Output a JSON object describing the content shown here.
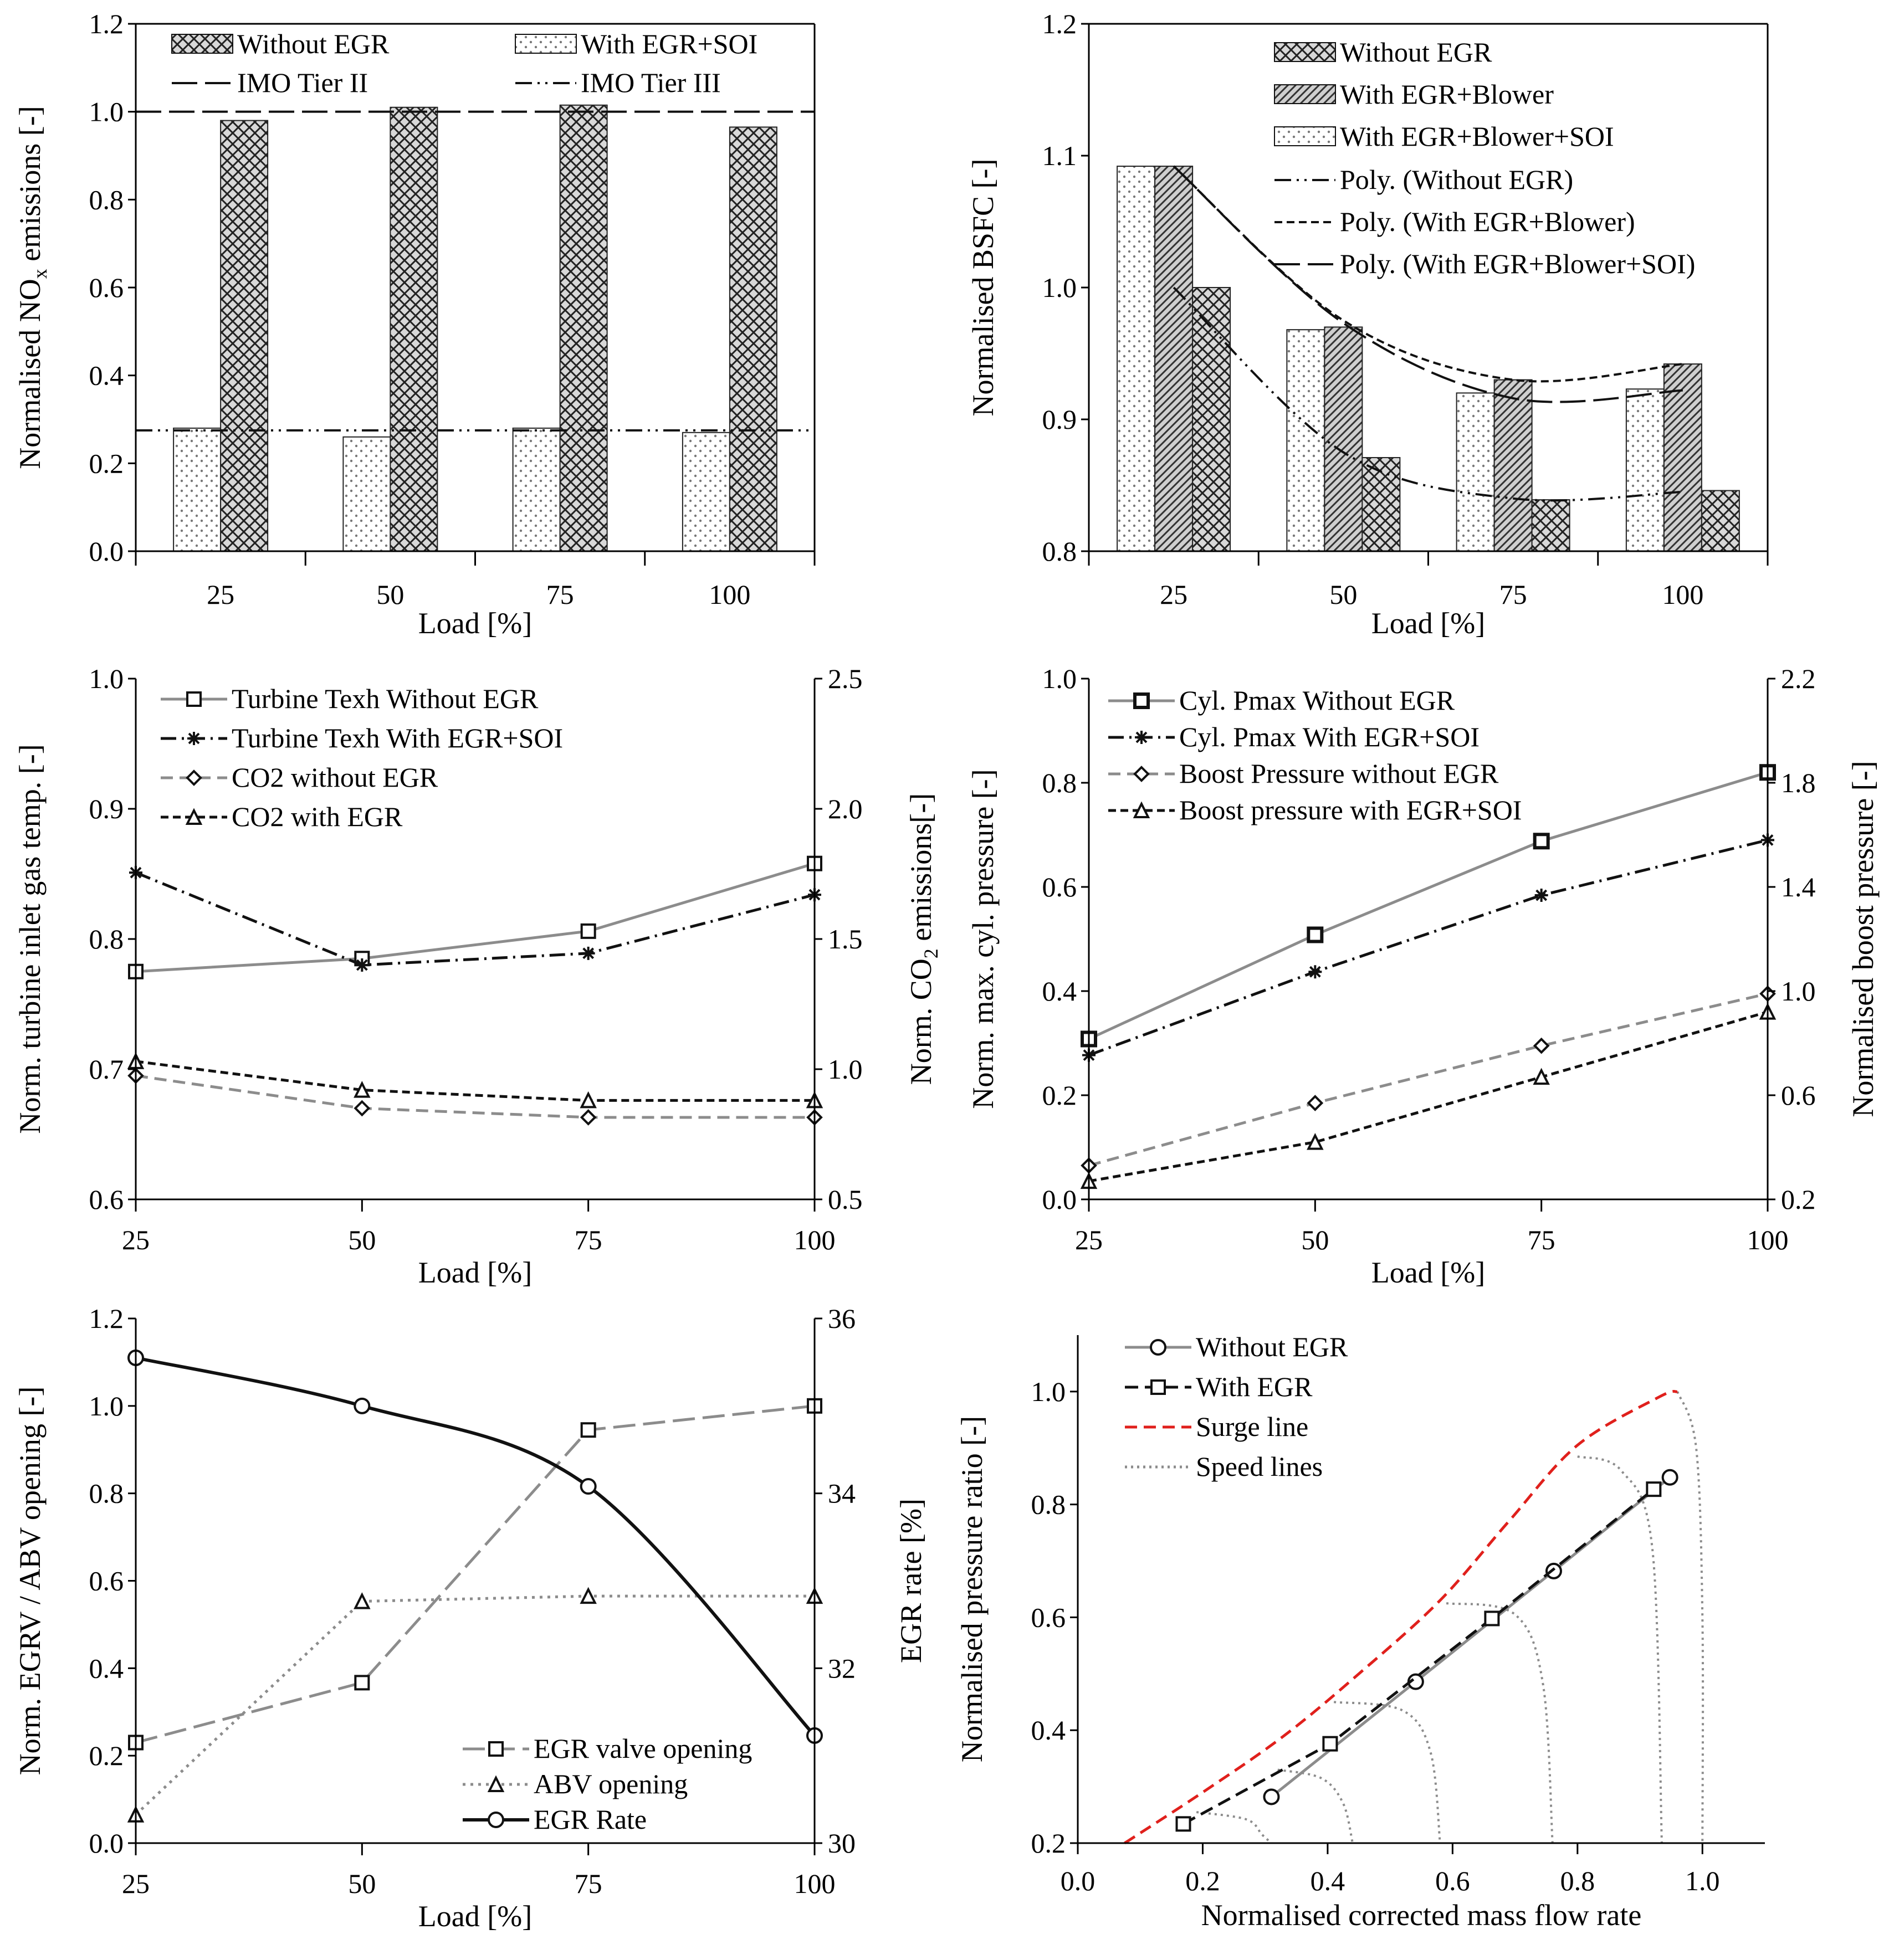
{
  "chart_data": [
    {
      "id": "p1",
      "type": "bar",
      "categories": [
        "25",
        "50",
        "75",
        "100"
      ],
      "xlabel": "Load [%]",
      "ylabel_pre": "Normalised NO",
      "ylabel_sub": "x",
      "ylabel_post": " emissions [-]",
      "ylim": [
        0,
        1.2
      ],
      "yticks": [
        "0.0",
        "0.2",
        "0.4",
        "0.6",
        "0.8",
        "1.0",
        "1.2"
      ],
      "series": [
        {
          "name": "With EGR+SOI",
          "pattern": "dots",
          "values": [
            0.28,
            0.26,
            0.28,
            0.27
          ]
        },
        {
          "name": "Without EGR",
          "pattern": "cross",
          "values": [
            0.98,
            1.01,
            1.015,
            0.965
          ]
        }
      ],
      "reference_lines": [
        {
          "name": "IMO Tier II",
          "value": 1.0,
          "dash": "long"
        },
        {
          "name": "IMO Tier III",
          "value": 0.275,
          "dash": "dashdotdot"
        }
      ]
    },
    {
      "id": "p2",
      "type": "bar",
      "categories": [
        "25",
        "50",
        "75",
        "100"
      ],
      "xlabel": "Load [%]",
      "ylabel": "Normalised BSFC [-]",
      "ylim": [
        0.8,
        1.2
      ],
      "yticks": [
        "0.8",
        "0.9",
        "1.0",
        "1.1",
        "1.2"
      ],
      "series": [
        {
          "name": "With EGR+Blower+SOI",
          "pattern": "dots",
          "values": [
            1.092,
            0.968,
            0.92,
            0.923
          ]
        },
        {
          "name": "With EGR+Blower",
          "pattern": "diag",
          "values": [
            1.092,
            0.97,
            0.93,
            0.942
          ]
        },
        {
          "name": "Without EGR",
          "pattern": "cross",
          "values": [
            1.0,
            0.871,
            0.839,
            0.846
          ]
        }
      ],
      "legend_order": [
        "Without EGR",
        "With EGR+Blower",
        "With EGR+Blower+SOI"
      ],
      "trendlines": [
        {
          "name": "Poly. (Without EGR)",
          "dash": "dashdotdot",
          "points": [
            [
              25,
              1.0
            ],
            [
              50,
              0.875
            ],
            [
              75,
              0.84
            ],
            [
              100,
              0.845
            ]
          ]
        },
        {
          "name": "Poly. (With EGR+Blower)",
          "dash": "short",
          "points": [
            [
              25,
              1.092
            ],
            [
              50,
              0.975
            ],
            [
              75,
              0.93
            ],
            [
              100,
              0.942
            ]
          ]
        },
        {
          "name": "Poly. (With EGR+Blower+SOI)",
          "dash": "long",
          "points": [
            [
              25,
              1.092
            ],
            [
              50,
              0.973
            ],
            [
              75,
              0.916
            ],
            [
              100,
              0.922
            ]
          ]
        }
      ]
    },
    {
      "id": "p3",
      "type": "line",
      "x": [
        25,
        50,
        75,
        100
      ],
      "xlabel": "Load [%]",
      "ylabel": "Norm. turbine inlet gas temp. [-]",
      "y2label_pre": "Norm. CO",
      "y2label_sub": "2",
      "y2label_post": " emissions[-]",
      "xticks": [
        "25",
        "50",
        "75",
        "100"
      ],
      "ylim": [
        0.6,
        1.0
      ],
      "yticks": [
        "0.6",
        "0.7",
        "0.8",
        "0.9",
        "1.0"
      ],
      "y2lim": [
        0.5,
        2.5
      ],
      "y2ticks": [
        "0.5",
        "1.0",
        "1.5",
        "2.0",
        "2.5"
      ],
      "series": [
        {
          "name": "Turbine Texh Without EGR",
          "axis": "left",
          "marker": "square",
          "style": "gray-solid",
          "values": [
            0.775,
            0.785,
            0.806,
            0.858
          ]
        },
        {
          "name": "Turbine Texh With EGR+SOI",
          "axis": "left",
          "marker": "star",
          "style": "black-dashdot",
          "values": [
            0.851,
            0.78,
            0.789,
            0.834
          ]
        },
        {
          "name": "CO2 without EGR",
          "axis": "right",
          "marker": "diamond",
          "style": "gray-dash",
          "values": [
            0.975,
            0.85,
            0.815,
            0.815
          ]
        },
        {
          "name": "CO2 with EGR",
          "axis": "right",
          "marker": "triangle",
          "style": "black-dotdash",
          "values": [
            1.03,
            0.92,
            0.88,
            0.88
          ]
        }
      ]
    },
    {
      "id": "p4",
      "type": "line",
      "x": [
        25,
        50,
        75,
        100
      ],
      "xlabel": "Load [%]",
      "ylabel": "Norm. max. cyl. pressure  [-]",
      "y2label": "Normalised boost pressure [-]",
      "xticks": [
        "25",
        "50",
        "75",
        "100"
      ],
      "ylim": [
        0.0,
        1.0
      ],
      "yticks": [
        "0.0",
        "0.2",
        "0.4",
        "0.6",
        "0.8",
        "1.0"
      ],
      "y2lim": [
        0.2,
        2.2
      ],
      "y2ticks": [
        "0.2",
        "0.6",
        "1.0",
        "1.4",
        "1.8",
        "2.2"
      ],
      "series": [
        {
          "name": "Cyl. Pmax Without EGR",
          "axis": "left",
          "marker": "square-bold",
          "style": "gray-solid",
          "values": [
            0.308,
            0.508,
            0.688,
            0.82
          ]
        },
        {
          "name": "Cyl. Pmax With EGR+SOI",
          "axis": "left",
          "marker": "star",
          "style": "black-dashdot",
          "values": [
            0.277,
            0.437,
            0.584,
            0.69
          ]
        },
        {
          "name": "Boost Pressure without EGR",
          "axis": "right",
          "marker": "diamond",
          "style": "gray-dash",
          "values": [
            0.33,
            0.57,
            0.79,
            0.99
          ]
        },
        {
          "name": "Boost pressure with EGR+SOI",
          "axis": "right",
          "marker": "triangle",
          "style": "black-dotdash",
          "values": [
            0.27,
            0.42,
            0.67,
            0.92
          ]
        }
      ]
    },
    {
      "id": "p5",
      "type": "line",
      "x": [
        25,
        50,
        75,
        100
      ],
      "xlabel": "Load [%]",
      "ylabel": "Norm. EGRV / ABV opening [-]",
      "y2label": "EGR rate [%]",
      "xticks": [
        "25",
        "50",
        "75",
        "100"
      ],
      "ylim": [
        0.0,
        1.2
      ],
      "yticks": [
        "0.0",
        "0.2",
        "0.4",
        "0.6",
        "0.8",
        "1.0",
        "1.2"
      ],
      "y2lim": [
        30,
        36
      ],
      "y2ticks": [
        "30",
        "32",
        "34",
        "36"
      ],
      "series": [
        {
          "name": "EGR valve opening",
          "axis": "left",
          "marker": "square",
          "style": "gray-longdash",
          "values": [
            0.23,
            0.367,
            0.945,
            1.0
          ]
        },
        {
          "name": "ABV opening",
          "axis": "left",
          "marker": "triangle",
          "style": "gray-dotted",
          "values": [
            0.065,
            0.553,
            0.565,
            0.565
          ]
        },
        {
          "name": "EGR Rate",
          "axis": "right",
          "marker": "circle",
          "style": "black-solid",
          "values": [
            35.55,
            35.0,
            34.08,
            31.23
          ]
        }
      ]
    },
    {
      "id": "p6",
      "type": "line",
      "xlabel": "Normalised corrected mass flow rate",
      "ylabel": "Normalised pressure ratio [-]",
      "xlim": [
        0.0,
        1.1
      ],
      "xticks": [
        "0.0",
        "0.2",
        "0.4",
        "0.6",
        "0.8",
        "1.0"
      ],
      "ylim": [
        0.2,
        1.1
      ],
      "yticks": [
        "0.2",
        "0.4",
        "0.6",
        "0.8",
        "1.0"
      ],
      "series": [
        {
          "name": "Without EGR",
          "marker": "circle",
          "style": "gray-solid",
          "points": [
            [
              0.31,
              0.282
            ],
            [
              0.541,
              0.486
            ],
            [
              0.762,
              0.682
            ],
            [
              0.948,
              0.848
            ]
          ]
        },
        {
          "name": "With EGR",
          "marker": "square",
          "style": "black-dash",
          "points": [
            [
              0.169,
              0.234
            ],
            [
              0.404,
              0.376
            ],
            [
              0.663,
              0.598
            ],
            [
              0.922,
              0.827
            ]
          ]
        },
        {
          "name": "Surge line",
          "marker": "none",
          "style": "red-dash",
          "points": [
            [
              0.075,
              0.2
            ],
            [
              0.2,
              0.29
            ],
            [
              0.33,
              0.39
            ],
            [
              0.45,
              0.5
            ],
            [
              0.58,
              0.63
            ],
            [
              0.69,
              0.77
            ],
            [
              0.8,
              0.905
            ],
            [
              0.93,
              0.99
            ],
            [
              0.96,
              1.0
            ]
          ]
        },
        {
          "name": "Speed lines",
          "marker": "none",
          "style": "gray-dot",
          "curves": [
            [
              [
                0.19,
                0.255
              ],
              [
                0.27,
                0.242
              ],
              [
                0.295,
                0.215
              ],
              [
                0.31,
                0.2
              ]
            ],
            [
              [
                0.32,
                0.33
              ],
              [
                0.39,
                0.315
              ],
              [
                0.425,
                0.27
              ],
              [
                0.44,
                0.2
              ]
            ],
            [
              [
                0.41,
                0.45
              ],
              [
                0.52,
                0.435
              ],
              [
                0.565,
                0.36
              ],
              [
                0.58,
                0.2
              ]
            ],
            [
              [
                0.59,
                0.625
              ],
              [
                0.7,
                0.605
              ],
              [
                0.745,
                0.48
              ],
              [
                0.76,
                0.2
              ]
            ],
            [
              [
                0.8,
                0.885
              ],
              [
                0.87,
                0.86
              ],
              [
                0.92,
                0.72
              ],
              [
                0.935,
                0.2
              ]
            ],
            [
              [
                0.96,
                1.0
              ],
              [
                0.99,
                0.9
              ],
              [
                1.0,
                0.6
              ],
              [
                1.0,
                0.2
              ]
            ]
          ]
        }
      ]
    }
  ]
}
